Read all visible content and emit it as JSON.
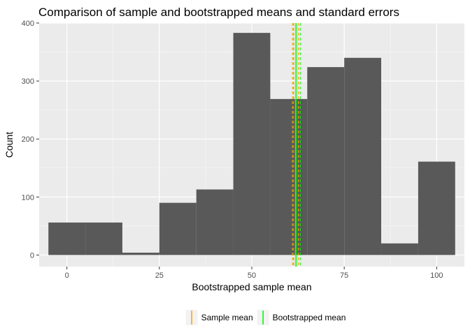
{
  "chart_data": {
    "type": "bar",
    "title": "Comparison of sample and bootstrapped means and standard errors",
    "xlabel": "Bootstrapped sample mean",
    "ylabel": "Count",
    "xlim": [
      -7.5,
      107.5
    ],
    "ylim": [
      -20,
      400
    ],
    "x_ticks": [
      "0",
      "25",
      "50",
      "75",
      "100"
    ],
    "x_tick_values": [
      0,
      25,
      50,
      75,
      100
    ],
    "y_ticks": [
      "0",
      "100",
      "200",
      "300",
      "400"
    ],
    "y_tick_values": [
      0,
      100,
      200,
      300,
      400
    ],
    "bin_width": 10,
    "bins": [
      {
        "center": 0,
        "count": 56
      },
      {
        "center": 10,
        "count": 56
      },
      {
        "center": 20,
        "count": 4
      },
      {
        "center": 30,
        "count": 90
      },
      {
        "center": 40,
        "count": 113
      },
      {
        "center": 50,
        "count": 383
      },
      {
        "center": 60,
        "count": 269
      },
      {
        "center": 70,
        "count": 324
      },
      {
        "center": 80,
        "count": 340
      },
      {
        "center": 90,
        "count": 20
      },
      {
        "center": 100,
        "count": 161
      }
    ],
    "bar_color": "#595959",
    "grid": true,
    "panel_background": "#ebebeb",
    "reference_lines": [
      {
        "name": "Sample mean",
        "value": 61.8,
        "style": "solid",
        "color": "#ffa500"
      },
      {
        "name": "Sample mean",
        "value": 61.0,
        "style": "dashed",
        "color": "#ffa500"
      },
      {
        "name": "Sample mean",
        "value": 62.6,
        "style": "dashed",
        "color": "#ffa500"
      },
      {
        "name": "Bootstrapped mean",
        "value": 62.1,
        "style": "solid",
        "color": "#00ff00"
      },
      {
        "name": "Bootstrapped mean",
        "value": 61.3,
        "style": "dashed",
        "color": "#00ff00"
      },
      {
        "name": "Bootstrapped mean",
        "value": 63.1,
        "style": "dashed",
        "color": "#00ff00"
      }
    ],
    "legend": {
      "placement": "bottom",
      "entries": [
        {
          "name": "Sample mean",
          "color": "#ffa500"
        },
        {
          "name": "Bootstrapped mean",
          "color": "#00ff00"
        }
      ]
    }
  }
}
